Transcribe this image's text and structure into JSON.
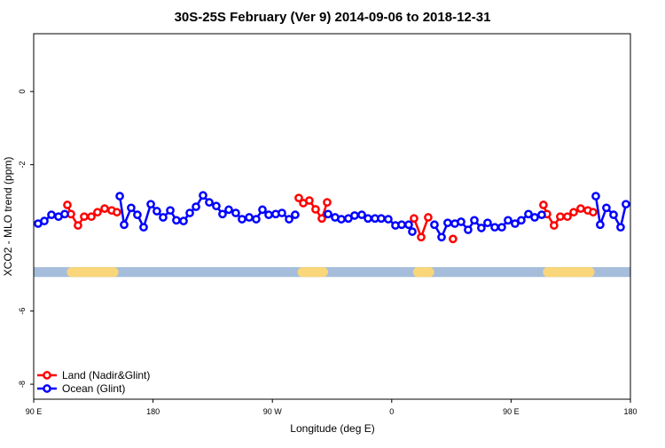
{
  "chart_data": {
    "type": "line",
    "title": "30S-25S February (Ver 9)   2014-09-06 to 2018-12-31",
    "x_label": "Longitude (deg E)",
    "y_label": "XCO2 - MLO trend (ppm)",
    "xlim": [
      90,
      540
    ],
    "ylim": [
      -8.41,
      1.58
    ],
    "xticks": [
      {
        "value": 90,
        "label": "90 E"
      },
      180,
      {
        "value": 270,
        "label": "90 W"
      },
      {
        "value": 360,
        "label": "0"
      },
      {
        "value": 450,
        "label": "90 E"
      },
      {
        "value": 540,
        "label": "180"
      }
    ],
    "yticks": [
      0,
      -2,
      -6,
      -8
    ],
    "legend": "bottom-left",
    "strip": {
      "range": [
        -4.8,
        -5.07
      ],
      "color": "#a5bddb",
      "land_color": "#f9d67a",
      "land": [
        [
          115,
          154
        ],
        [
          289,
          312
        ],
        [
          376,
          392
        ],
        [
          474,
          513
        ]
      ]
    },
    "series": [
      {
        "name": "Land (Nadir&Glint)",
        "color": "#ff0000",
        "x": [
          115.4,
          118.1,
          123.4,
          128.1,
          133.5,
          138.1,
          143.5,
          148.8,
          152.8,
          null,
          289.9,
          293.3,
          297.9,
          302.6,
          307.3,
          311.3,
          null,
          376.8,
          382.2,
          387.5,
          null,
          406.2,
          null,
          474.4,
          477.1,
          482.4,
          487.1,
          492.5,
          497.2,
          502.5,
          507.9,
          511.9
        ],
        "values": [
          -3.1,
          -3.35,
          -3.66,
          -3.42,
          -3.42,
          -3.3,
          -3.2,
          -3.25,
          -3.3,
          null,
          -2.91,
          -3.05,
          -2.98,
          -3.22,
          -3.47,
          -3.03,
          null,
          -3.47,
          -3.98,
          -3.44,
          null,
          -4.03,
          null,
          -3.1,
          -3.35,
          -3.66,
          -3.42,
          -3.42,
          -3.3,
          -3.2,
          -3.25,
          -3.3
        ]
      },
      {
        "name": "Ocean (Glint)",
        "color": "#0000ff",
        "x": [
          93.3,
          98.0,
          103.4,
          108.7,
          113.4,
          null,
          154.9,
          158.2,
          163.5,
          168.2,
          172.9,
          178.3,
          182.9,
          187.6,
          193.0,
          197.6,
          203.0,
          207.7,
          212.4,
          217.7,
          222.4,
          227.7,
          232.4,
          237.1,
          242.4,
          247.1,
          252.5,
          257.8,
          262.5,
          267.2,
          272.5,
          277.2,
          282.6,
          287.2,
          null,
          312.0,
          317.3,
          322.0,
          327.3,
          332.0,
          337.4,
          342.1,
          347.4,
          352.1,
          357.4,
          362.8,
          367.5,
          372.8,
          375.5,
          null,
          392.2,
          397.6,
          402.2,
          407.6,
          412.3,
          417.6,
          422.3,
          427.6,
          432.3,
          437.7,
          443.0,
          447.7,
          453.0,
          457.7,
          463.1,
          467.8,
          473.1,
          null,
          513.9,
          517.2,
          521.9,
          527.3,
          532.6,
          536.6
        ],
        "values": [
          -3.61,
          -3.54,
          -3.37,
          -3.42,
          -3.35,
          null,
          -2.86,
          -3.64,
          -3.18,
          -3.37,
          -3.71,
          -3.08,
          -3.27,
          -3.44,
          -3.25,
          -3.52,
          -3.54,
          -3.32,
          -3.15,
          -2.84,
          -3.03,
          -3.13,
          -3.35,
          -3.23,
          -3.32,
          -3.49,
          -3.44,
          -3.49,
          -3.23,
          -3.37,
          -3.35,
          -3.32,
          -3.49,
          -3.37,
          null,
          -3.35,
          -3.44,
          -3.49,
          -3.47,
          -3.39,
          -3.37,
          -3.47,
          -3.47,
          -3.47,
          -3.49,
          -3.66,
          -3.64,
          -3.64,
          -3.83,
          null,
          -3.64,
          -3.98,
          -3.59,
          -3.61,
          -3.56,
          -3.78,
          -3.52,
          -3.73,
          -3.59,
          -3.71,
          -3.71,
          -3.52,
          -3.61,
          -3.52,
          -3.35,
          -3.44,
          -3.37,
          null,
          -2.86,
          -3.64,
          -3.18,
          -3.37,
          -3.71,
          -3.08
        ]
      }
    ]
  }
}
